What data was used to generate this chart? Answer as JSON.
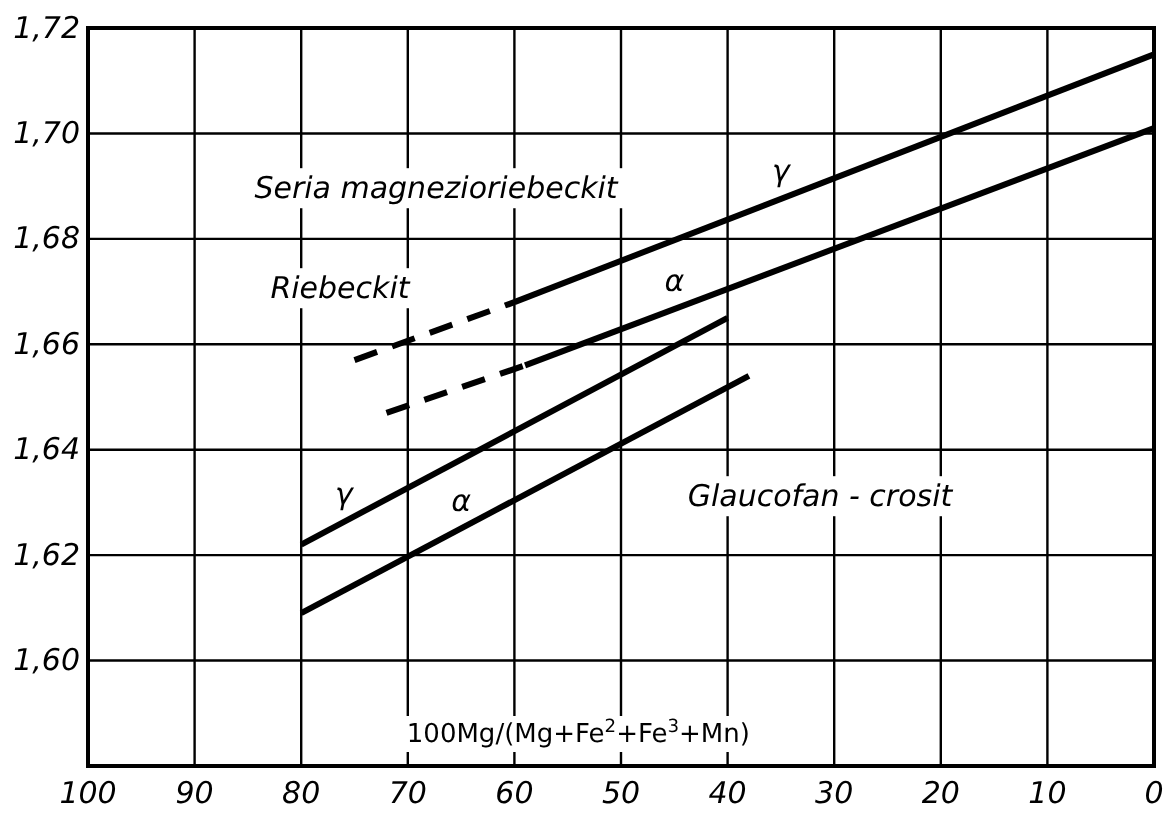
{
  "chart_data": {
    "type": "line",
    "xlabel": "100Mg/(Mg+Fe$^{2}$+Fe$^{3}$+Mn)",
    "xlim": [
      100,
      0
    ],
    "xticks": [
      100,
      90,
      80,
      70,
      60,
      50,
      40,
      30,
      20,
      10,
      0
    ],
    "ylim": [
      1.58,
      1.72
    ],
    "yticks": [
      {
        "value": 1.58,
        "label": null
      },
      {
        "value": 1.6,
        "label": "1,60"
      },
      {
        "value": 1.62,
        "label": "1,62"
      },
      {
        "value": 1.64,
        "label": "1,64"
      },
      {
        "value": 1.66,
        "label": "1,66"
      },
      {
        "value": 1.68,
        "label": "1,68"
      },
      {
        "value": 1.7,
        "label": "1,70"
      },
      {
        "value": 1.72,
        "label": "1,72"
      }
    ],
    "grid": true,
    "marker": "none",
    "line_style": "solid",
    "series": [
      {
        "name": "γ",
        "color": "#000000",
        "x": [
          60,
          0
        ],
        "values": [
          1.668,
          1.715
        ]
      },
      {
        "color": "#000000",
        "x": [
          75,
          60
        ],
        "values": [
          1.657,
          1.668
        ],
        "line_style": "dashed"
      },
      {
        "name": "α",
        "color": "#000000",
        "x": [
          59,
          0
        ],
        "values": [
          1.656,
          1.701
        ]
      },
      {
        "color": "#000000",
        "x": [
          72,
          59
        ],
        "values": [
          1.647,
          1.656
        ],
        "line_style": "dashed"
      },
      {
        "name": "γ",
        "color": "#000000",
        "x": [
          80,
          40
        ],
        "values": [
          1.622,
          1.665
        ]
      },
      {
        "name": "α",
        "color": "#000000",
        "x": [
          80,
          38
        ],
        "values": [
          1.609,
          1.654
        ]
      }
    ],
    "annotations": [
      "Seria magnezioriebeckit",
      "Riebeckit",
      "Glaucofan - crosit"
    ]
  }
}
